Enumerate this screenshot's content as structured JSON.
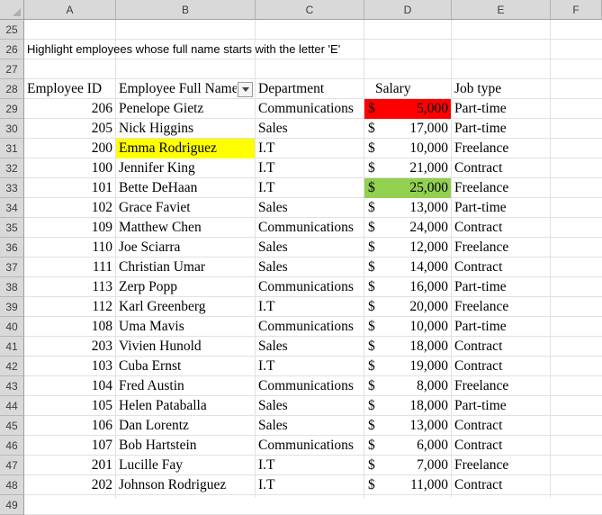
{
  "columns": [
    "A",
    "B",
    "C",
    "D",
    "E",
    "F"
  ],
  "rows": [
    "25",
    "26",
    "27",
    "28",
    "29",
    "30",
    "31",
    "32",
    "33",
    "34",
    "35",
    "36",
    "37",
    "38",
    "39",
    "40",
    "41",
    "42",
    "43",
    "44",
    "45",
    "46",
    "47",
    "48",
    "49"
  ],
  "instruction": "Highlight employees whose full name starts with the letter 'E'",
  "headers": {
    "id": "Employee ID",
    "name": "Employee Full Name",
    "department": "Department",
    "salary": "Salary",
    "job_type": "Job type"
  },
  "currency_symbol": "$",
  "highlight_colors": {
    "red": "#ff0000",
    "yellow": "#ffff00",
    "green": "#92d050"
  },
  "employees": [
    {
      "id": "206",
      "name": "Penelope Gietz",
      "department": "Communications",
      "salary": "5,000",
      "job": "Part-time",
      "salary_fill": "#ff0000"
    },
    {
      "id": "205",
      "name": "Nick Higgins",
      "department": "Sales",
      "salary": "17,000",
      "job": "Part-time"
    },
    {
      "id": "200",
      "name": "Emma Rodriguez",
      "department": "I.T",
      "salary": "10,000",
      "job": "Freelance",
      "name_fill": "#ffff00"
    },
    {
      "id": "100",
      "name": "Jennifer King",
      "department": "I.T",
      "salary": "21,000",
      "job": "Contract"
    },
    {
      "id": "101",
      "name": "Bette DeHaan",
      "department": "I.T",
      "salary": "25,000",
      "job": "Freelance",
      "salary_fill": "#92d050"
    },
    {
      "id": "102",
      "name": "Grace Faviet",
      "department": "Sales",
      "salary": "13,000",
      "job": "Part-time"
    },
    {
      "id": "109",
      "name": "Matthew Chen",
      "department": "Communications",
      "salary": "24,000",
      "job": "Contract"
    },
    {
      "id": "110",
      "name": "Joe Sciarra",
      "department": "Sales",
      "salary": "12,000",
      "job": "Freelance"
    },
    {
      "id": "111",
      "name": "Christian Umar",
      "department": "Sales",
      "salary": "14,000",
      "job": "Contract"
    },
    {
      "id": "113",
      "name": "Zerp Popp",
      "department": "Communications",
      "salary": "16,000",
      "job": "Part-time"
    },
    {
      "id": "112",
      "name": "Karl Greenberg",
      "department": "I.T",
      "salary": "20,000",
      "job": "Freelance"
    },
    {
      "id": "108",
      "name": "Uma Mavis",
      "department": "Communications",
      "salary": "10,000",
      "job": "Part-time"
    },
    {
      "id": "203",
      "name": "Vivien Hunold",
      "department": "Sales",
      "salary": "18,000",
      "job": "Contract"
    },
    {
      "id": "103",
      "name": "Cuba Ernst",
      "department": "I.T",
      "salary": "19,000",
      "job": "Contract"
    },
    {
      "id": "104",
      "name": "Fred Austin",
      "department": "Communications",
      "salary": "8,000",
      "job": "Freelance"
    },
    {
      "id": "105",
      "name": "Helen Pataballa",
      "department": "Sales",
      "salary": "18,000",
      "job": "Part-time"
    },
    {
      "id": "106",
      "name": "Dan Lorentz",
      "department": "Sales",
      "salary": "13,000",
      "job": "Contract"
    },
    {
      "id": "107",
      "name": "Bob Hartstein",
      "department": "Communications",
      "salary": "6,000",
      "job": "Contract"
    },
    {
      "id": "201",
      "name": "Lucille Fay",
      "department": "I.T",
      "salary": "7,000",
      "job": "Freelance"
    },
    {
      "id": "202",
      "name": "Johnson Rodriguez",
      "department": " I.T",
      "salary": "11,000",
      "job": "Contract"
    }
  ]
}
